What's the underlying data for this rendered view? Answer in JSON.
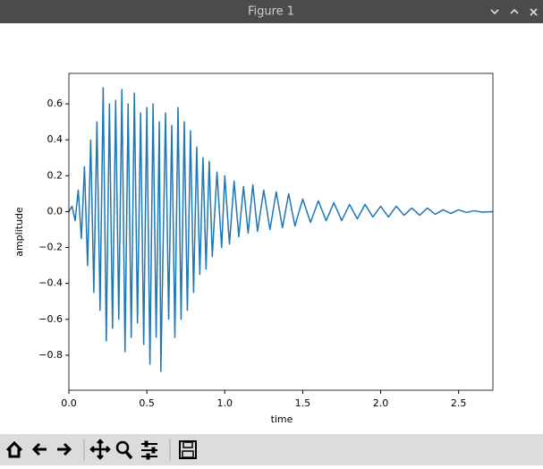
{
  "window_title": "Figure 1",
  "chart_data": {
    "type": "line",
    "xlabel": "time",
    "ylabel": "amplitude",
    "color": "#1f77b4",
    "x": [
      0.0,
      0.02,
      0.04,
      0.06,
      0.08,
      0.1,
      0.12,
      0.14,
      0.16,
      0.18,
      0.2,
      0.22,
      0.24,
      0.26,
      0.28,
      0.3,
      0.32,
      0.34,
      0.36,
      0.38,
      0.4,
      0.42,
      0.44,
      0.46,
      0.48,
      0.5,
      0.52,
      0.54,
      0.56,
      0.58,
      0.59,
      0.62,
      0.64,
      0.66,
      0.68,
      0.7,
      0.72,
      0.74,
      0.76,
      0.78,
      0.8,
      0.82,
      0.84,
      0.86,
      0.88,
      0.9,
      0.92,
      0.95,
      0.98,
      1.0,
      1.03,
      1.06,
      1.09,
      1.12,
      1.15,
      1.18,
      1.21,
      1.25,
      1.29,
      1.33,
      1.37,
      1.41,
      1.45,
      1.5,
      1.55,
      1.6,
      1.65,
      1.7,
      1.75,
      1.8,
      1.85,
      1.9,
      1.95,
      2.0,
      2.05,
      2.1,
      2.15,
      2.2,
      2.25,
      2.3,
      2.35,
      2.4,
      2.45,
      2.5,
      2.55,
      2.6,
      2.65,
      2.72
    ],
    "values": [
      0,
      0.03,
      -0.05,
      0.12,
      -0.15,
      0.25,
      -0.3,
      0.4,
      -0.45,
      0.5,
      -0.55,
      0.69,
      -0.72,
      0.6,
      -0.65,
      0.62,
      -0.6,
      0.68,
      -0.78,
      0.6,
      -0.7,
      0.66,
      -0.62,
      0.55,
      -0.74,
      0.58,
      -0.85,
      0.6,
      -0.7,
      0.5,
      -0.89,
      0.55,
      -0.6,
      0.48,
      -0.7,
      0.58,
      -0.6,
      0.5,
      -0.55,
      0.45,
      -0.45,
      0.36,
      -0.35,
      0.3,
      -0.32,
      0.28,
      -0.25,
      0.22,
      -0.2,
      0.2,
      -0.18,
      0.17,
      -0.14,
      0.14,
      -0.12,
      0.15,
      -0.11,
      0.12,
      -0.1,
      0.11,
      -0.09,
      0.1,
      -0.08,
      0.07,
      -0.06,
      0.06,
      -0.05,
      0.05,
      -0.05,
      0.04,
      -0.04,
      0.04,
      -0.03,
      0.03,
      -0.03,
      0.03,
      -0.02,
      0.02,
      -0.02,
      0.02,
      -0.015,
      0.01,
      -0.01,
      0.01,
      -0.005,
      0.005,
      -0.003,
      0
    ],
    "xlim": [
      0,
      2.72
    ],
    "ylim": [
      -0.995,
      0.77
    ],
    "xticks": [
      {
        "value": 0,
        "label": "0.0"
      },
      0.5,
      {
        "value": 1,
        "label": "1.0"
      },
      1.5,
      {
        "value": 2,
        "label": "2.0"
      },
      2.5
    ],
    "yticks": [
      {
        "value": -0.8,
        "label": "−0.8"
      },
      {
        "value": -0.6,
        "label": "−0.6"
      },
      {
        "value": -0.4,
        "label": "−0.4"
      },
      {
        "value": -0.2,
        "label": "−0.2"
      },
      {
        "value": 0,
        "label": "0.0"
      },
      0.2,
      0.4,
      0.6
    ]
  }
}
